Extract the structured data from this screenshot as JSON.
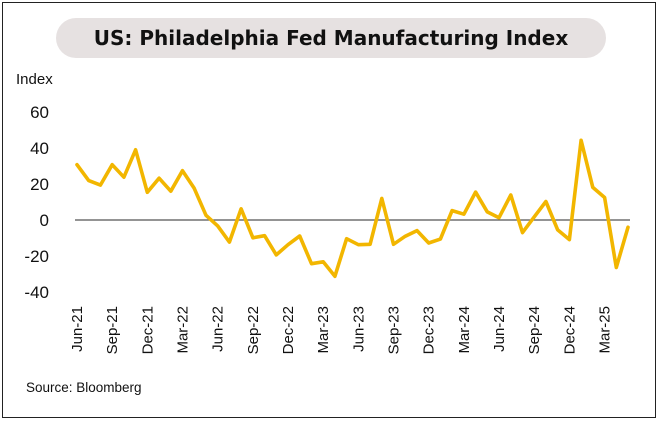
{
  "title": "US: Philadelphia Fed Manufacturing Index",
  "source": "Source: Bloomberg",
  "chart_data": {
    "type": "line",
    "title": "US: Philadelphia Fed Manufacturing Index",
    "xlabel": "",
    "ylabel": "Index",
    "ylim": [
      -40,
      60
    ],
    "yticks": [
      60,
      40,
      20,
      0,
      -20,
      -40
    ],
    "grid": false,
    "line_color": "#F2B600",
    "zero_line": true,
    "x_tick_labels": [
      "Jun-21",
      "Sep-21",
      "Dec-21",
      "Mar-22",
      "Jun-22",
      "Sep-22",
      "Dec-22",
      "Mar-23",
      "Jun-23",
      "Sep-23",
      "Dec-23",
      "Mar-24",
      "Jun-24",
      "Sep-24",
      "Dec-24",
      "Mar-25"
    ],
    "x": [
      "Jun-21",
      "Jul-21",
      "Aug-21",
      "Sep-21",
      "Oct-21",
      "Nov-21",
      "Dec-21",
      "Jan-22",
      "Feb-22",
      "Mar-22",
      "Apr-22",
      "May-22",
      "Jun-22",
      "Jul-22",
      "Aug-22",
      "Sep-22",
      "Oct-22",
      "Nov-22",
      "Dec-22",
      "Jan-23",
      "Feb-23",
      "Mar-23",
      "Apr-23",
      "May-23",
      "Jun-23",
      "Jul-23",
      "Aug-23",
      "Sep-23",
      "Oct-23",
      "Nov-23",
      "Dec-23",
      "Jan-24",
      "Feb-24",
      "Mar-24",
      "Apr-24",
      "May-24",
      "Jun-24",
      "Jul-24",
      "Aug-24",
      "Sep-24",
      "Oct-24",
      "Nov-24",
      "Dec-24",
      "Jan-25",
      "Feb-25",
      "Mar-25",
      "Apr-25",
      "May-25"
    ],
    "series": [
      {
        "values": [
          30.7,
          21.9,
          19.4,
          30.7,
          23.8,
          39.0,
          15.4,
          23.2,
          16.0,
          27.4,
          17.6,
          2.6,
          -3.3,
          -12.3,
          6.2,
          -9.9,
          -8.7,
          -19.4,
          -13.7,
          -8.9,
          -24.3,
          -23.2,
          -31.3,
          -10.4,
          -13.7,
          -13.5,
          12.0,
          -13.5,
          -9.0,
          -5.9,
          -12.8,
          -10.6,
          5.2,
          3.2,
          15.5,
          4.5,
          1.3,
          13.9,
          -7.0,
          1.7,
          10.3,
          -5.5,
          -10.9,
          44.3,
          18.1,
          12.5,
          -26.4,
          -4.0
        ]
      }
    ]
  }
}
